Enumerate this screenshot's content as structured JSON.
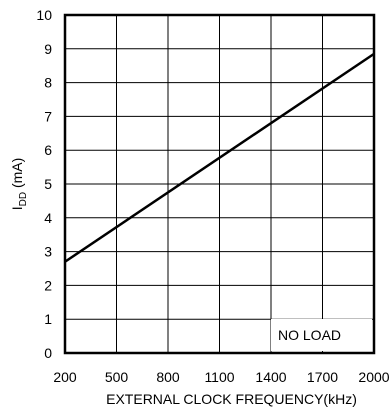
{
  "chart_data": {
    "type": "line",
    "title": "",
    "xlabel": "EXTERNAL CLOCK FREQUENCY(kHz)",
    "ylabel": {
      "base": "I",
      "subscript": "DD",
      "suffix": " (mA)"
    },
    "xlim": [
      200,
      2000
    ],
    "ylim": [
      0,
      10
    ],
    "x_ticks": [
      200,
      500,
      800,
      1100,
      1400,
      1700,
      2000
    ],
    "y_ticks": [
      0,
      1,
      2,
      3,
      4,
      5,
      6,
      7,
      8,
      9,
      10
    ],
    "grid": true,
    "series": [
      {
        "x": [
          200,
          2000
        ],
        "y": [
          2.7,
          8.85
        ]
      }
    ],
    "annotations": [
      {
        "text": "NO LOAD"
      }
    ]
  },
  "colors": {
    "line": "#000000",
    "grid": "#000000",
    "background": "#ffffff"
  }
}
